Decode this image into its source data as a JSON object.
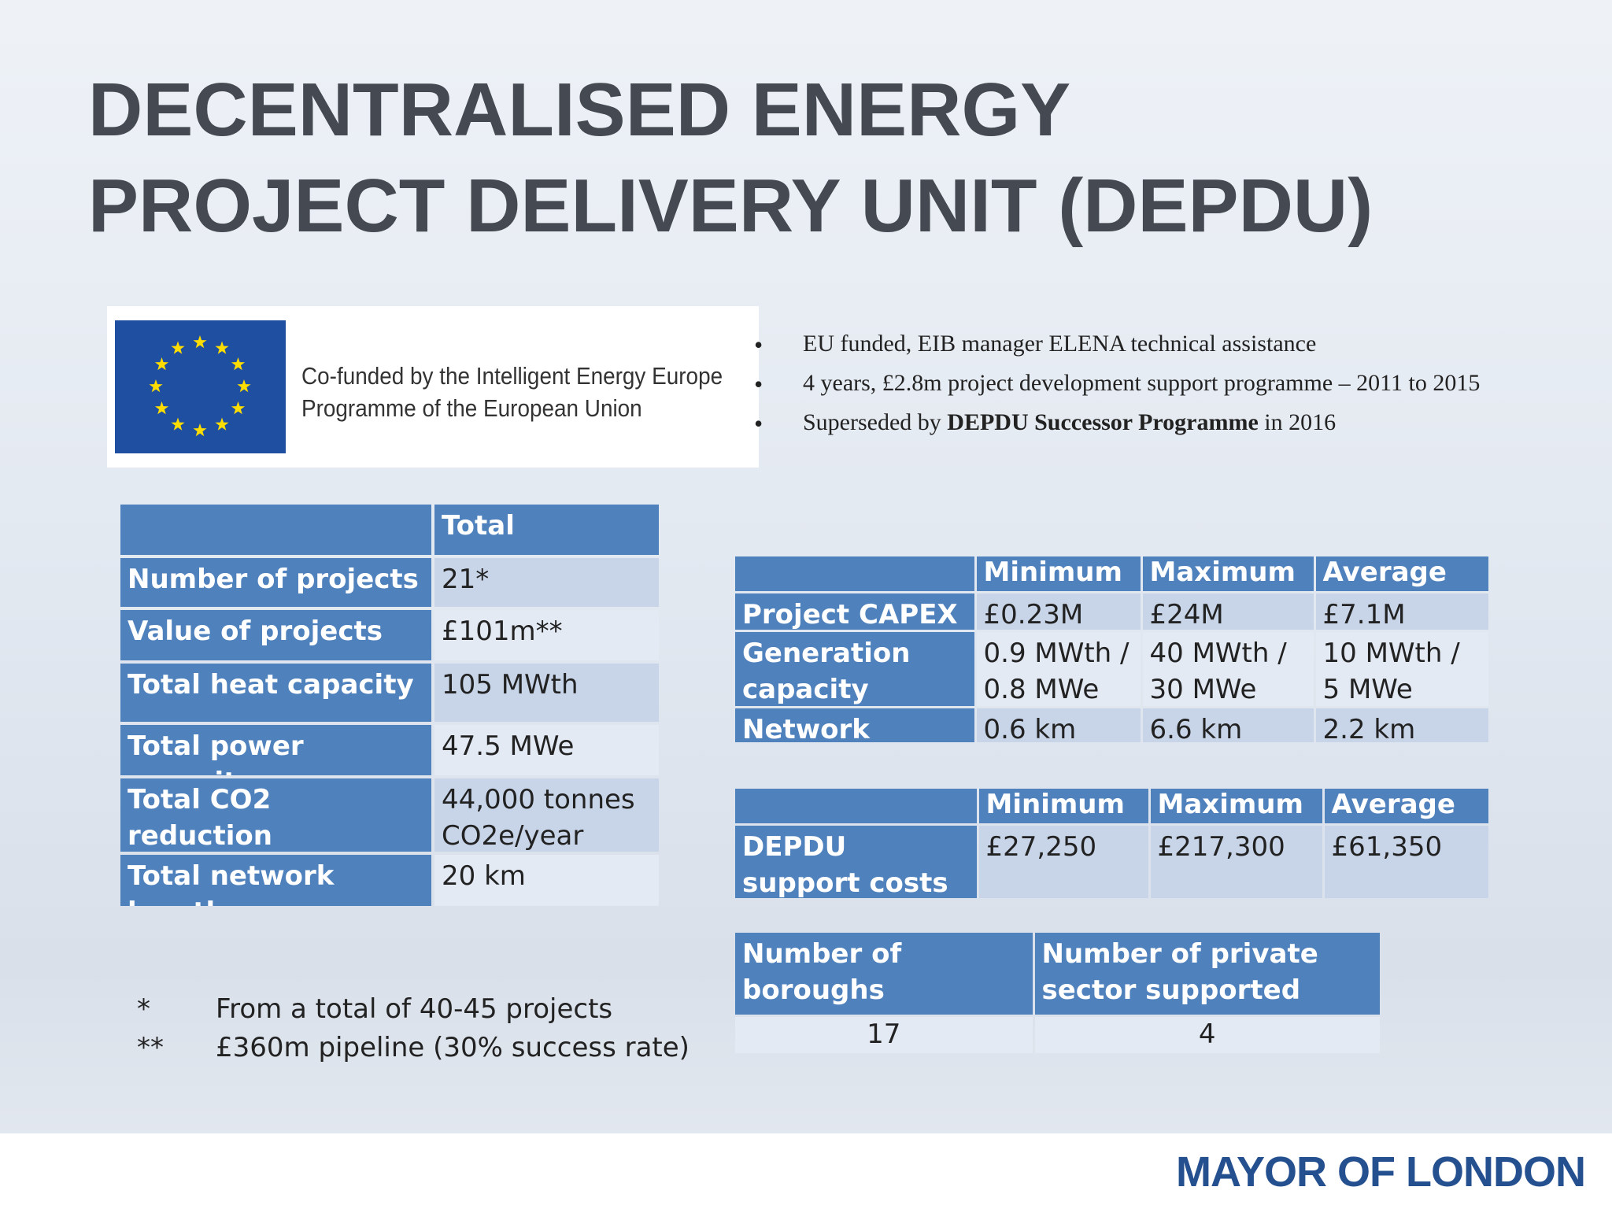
{
  "title": [
    "DECENTRALISED ENERGY",
    "PROJECT DELIVERY UNIT (DEPDU)"
  ],
  "eu_logo": {
    "caption": [
      "Co-funded by the Intelligent Energy Europe",
      "Programme of the European Union"
    ]
  },
  "bullets": [
    {
      "parts": [
        "EU funded, EIB manager ELENA technical assistance"
      ]
    },
    {
      "parts": [
        "4 years, £2.8m project development support programme – 2011 to 2015"
      ]
    },
    {
      "parts": [
        "Superseded by ",
        "DEPDU Successor Programme",
        " in 2016"
      ],
      "bold_part": 1
    }
  ],
  "summary_table": {
    "header": "Total",
    "rows": [
      [
        "Number of projects",
        "21*"
      ],
      [
        "Value of projects",
        "£101m**"
      ],
      [
        "Total heat capacity",
        "105 MWth"
      ],
      [
        "Total power capacity",
        "47.5 MWe"
      ],
      [
        "Total CO2 reduction",
        "44,000 tonnes CO2e/year"
      ],
      [
        "Total network length",
        "20 km"
      ]
    ]
  },
  "notes": [
    {
      "mark": "*",
      "text": "From a total of 40-45 projects"
    },
    {
      "mark": "**",
      "text": "£360m pipeline (30% success rate)"
    }
  ],
  "range_table": {
    "columns": [
      "Minimum",
      "Maximum",
      "Average"
    ],
    "rows": [
      {
        "label": "Project CAPEX",
        "cells": [
          "£0.23M",
          "£24M",
          "£7.1M"
        ]
      },
      {
        "label": "Generation capacity",
        "cells": [
          "0.9 MWth / 0.8 MWe",
          "40 MWth / 30 MWe",
          "10 MWth / 5 MWe"
        ]
      },
      {
        "label": "Network length",
        "cells": [
          "0.6 km",
          "6.6 km",
          "2.2 km"
        ]
      }
    ]
  },
  "cost_table": {
    "columns": [
      "Minimum",
      "Maximum",
      "Average"
    ],
    "rows": [
      {
        "label": "DEPDU support costs",
        "cells": [
          "£27,250",
          "£217,300",
          "£61,350"
        ]
      }
    ]
  },
  "support_table": {
    "headers": [
      "Number of boroughs supported",
      "Number of private sector supported"
    ],
    "values": [
      17,
      4
    ]
  },
  "footer": "MAYOR OF LONDON"
}
